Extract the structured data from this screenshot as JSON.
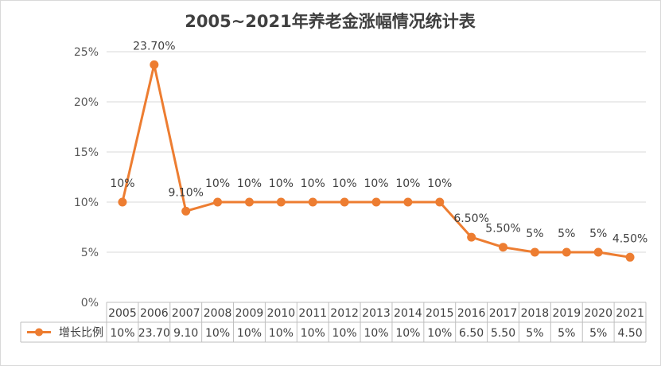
{
  "chart_data": {
    "type": "line",
    "title": "2005~2021年养老金涨幅情况统计表",
    "categories": [
      "2005",
      "2006",
      "2007",
      "2008",
      "2009",
      "2010",
      "2011",
      "2012",
      "2013",
      "2014",
      "2015",
      "2016",
      "2017",
      "2018",
      "2019",
      "2020",
      "2021"
    ],
    "series": [
      {
        "name": "增长比例",
        "color": "#ed7d31",
        "values": [
          10,
          23.7,
          9.1,
          10,
          10,
          10,
          10,
          10,
          10,
          10,
          10,
          6.5,
          5.5,
          5,
          5,
          5,
          4.5
        ],
        "data_labels": [
          "10%",
          "23.70%",
          "9.10%",
          "10%",
          "10%",
          "10%",
          "10%",
          "10%",
          "10%",
          "10%",
          "10%",
          "6.50%",
          "5.50%",
          "5%",
          "5%",
          "5%",
          "4.50%"
        ],
        "table_values": [
          "10%",
          "23.70",
          "9.10",
          "10%",
          "10%",
          "10%",
          "10%",
          "10%",
          "10%",
          "10%",
          "10%",
          "6.50",
          "5.50",
          "5%",
          "5%",
          "5%",
          "4.50"
        ]
      }
    ],
    "y_ticks": [
      "0%",
      "5%",
      "10%",
      "15%",
      "20%",
      "25%"
    ],
    "ylim": [
      0,
      25
    ],
    "grid": true,
    "legend": "data-table"
  }
}
